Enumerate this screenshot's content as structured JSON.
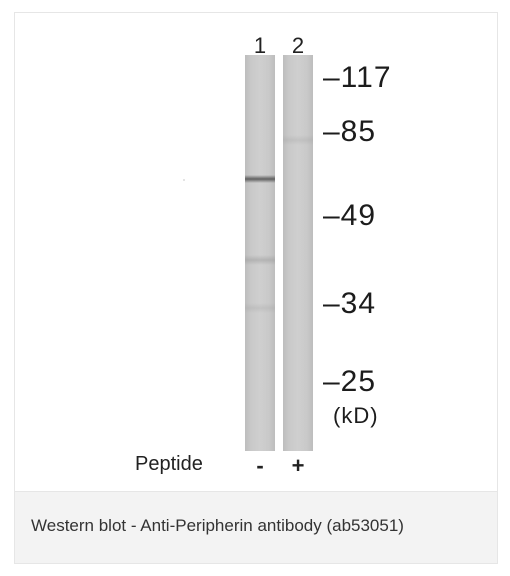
{
  "blot": {
    "lanes": [
      {
        "number": "1",
        "peptide": "-"
      },
      {
        "number": "2",
        "peptide": "+"
      }
    ],
    "markers": [
      "–117",
      "–85",
      "–49",
      "–34",
      "–25"
    ],
    "unit": "(kD)",
    "peptide_label": "Peptide"
  },
  "caption": "Western blot - Anti-Peripherin antibody (ab53051)"
}
